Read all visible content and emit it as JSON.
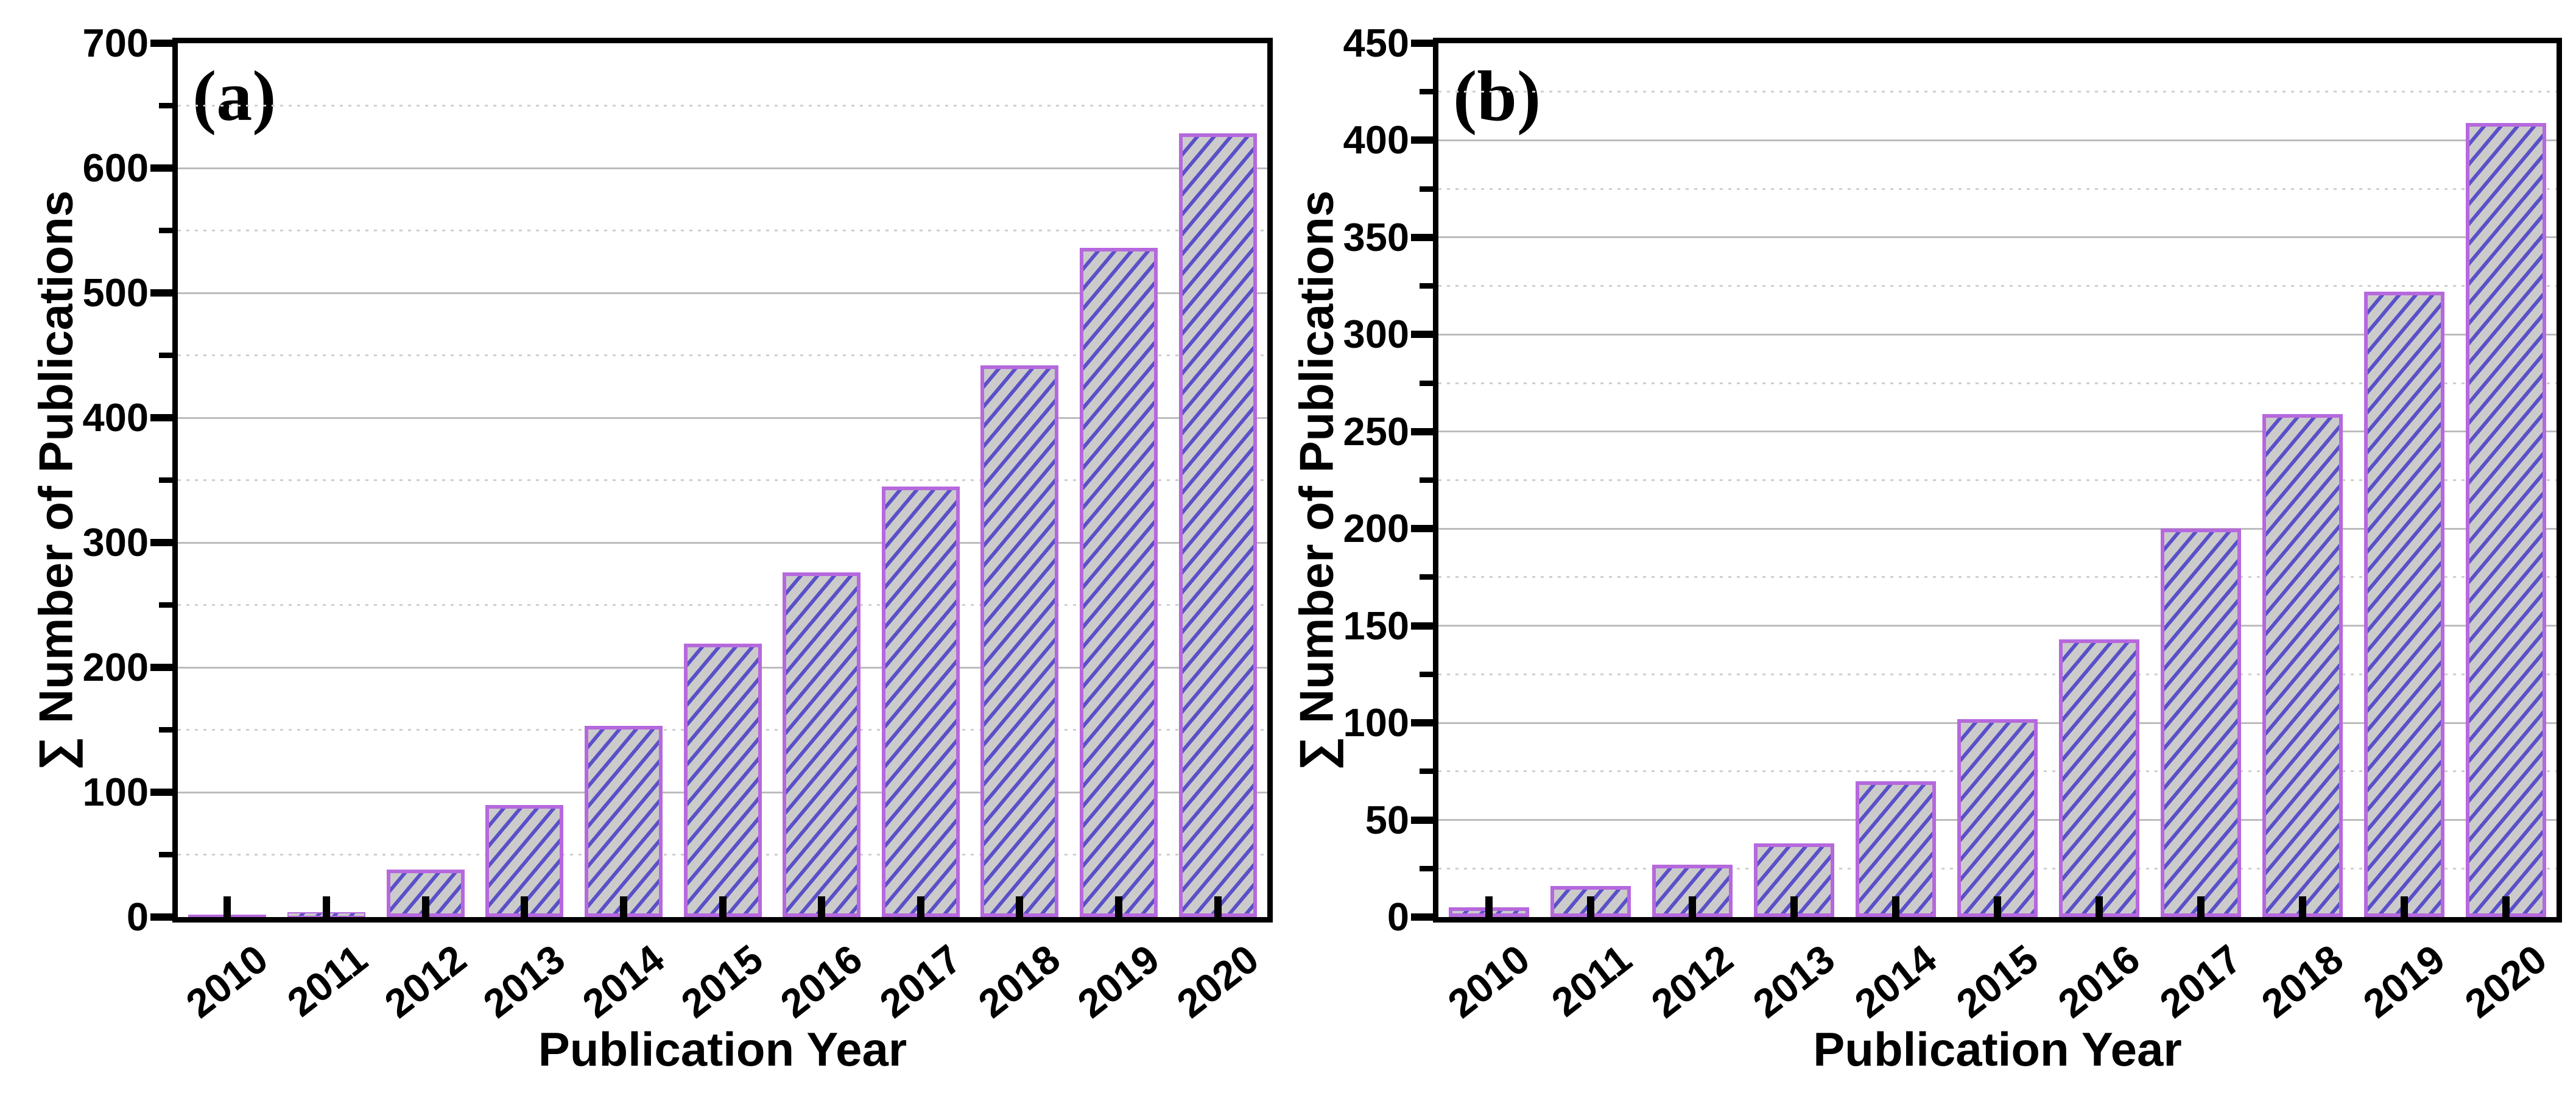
{
  "figure": {
    "background": "#ffffff",
    "description": "Two-panel cumulative publications bar chart figure"
  },
  "colors": {
    "bar_fill": "#cbcbcb",
    "bar_hatch": "#5a50c8",
    "bar_edge": "#b668dd",
    "grid_major": "#bcbcbc",
    "grid_minor": "#cfcfcf",
    "axis": "#000000",
    "text": "#000000",
    "background": "#ffffff"
  },
  "chart_data": [
    {
      "type": "bar",
      "panel_label": "(a)",
      "xlabel": "Publication Year",
      "ylabel": "∑ Number of Publications",
      "categories": [
        "2010",
        "2011",
        "2012",
        "2013",
        "2014",
        "2015",
        "2016",
        "2017",
        "2018",
        "2019",
        "2020"
      ],
      "values": [
        2,
        4,
        38,
        90,
        153,
        219,
        276,
        345,
        442,
        536,
        628
      ],
      "ylim": [
        0,
        700
      ],
      "ytick_step": 100,
      "minor_tick_step": 50,
      "yticks": [
        0,
        100,
        200,
        300,
        400,
        500,
        600,
        700
      ],
      "ytick_labels": [
        "0",
        "100",
        "200",
        "300",
        "400",
        "500",
        "600",
        "700"
      ],
      "grid": {
        "major": "solid",
        "minor": "dotted",
        "orientation": "horizontal"
      },
      "legend_position": "none",
      "hatch_pattern": "forward-diagonal"
    },
    {
      "type": "bar",
      "panel_label": "(b)",
      "xlabel": "Publication Year",
      "ylabel": "∑ Number of Publications",
      "categories": [
        "2010",
        "2011",
        "2012",
        "2013",
        "2014",
        "2015",
        "2016",
        "2017",
        "2018",
        "2019",
        "2020"
      ],
      "values": [
        5,
        16,
        27,
        38,
        70,
        102,
        143,
        200,
        259,
        322,
        409
      ],
      "ylim": [
        0,
        450
      ],
      "ytick_step": 50,
      "minor_tick_step": 25,
      "yticks": [
        0,
        50,
        100,
        150,
        200,
        250,
        300,
        350,
        400,
        450
      ],
      "ytick_labels": [
        "0",
        "50",
        "100",
        "150",
        "200",
        "250",
        "300",
        "350",
        "400",
        "450"
      ],
      "grid": {
        "major": "solid",
        "minor": "dotted",
        "orientation": "horizontal"
      },
      "legend_position": "none",
      "hatch_pattern": "forward-diagonal"
    }
  ]
}
